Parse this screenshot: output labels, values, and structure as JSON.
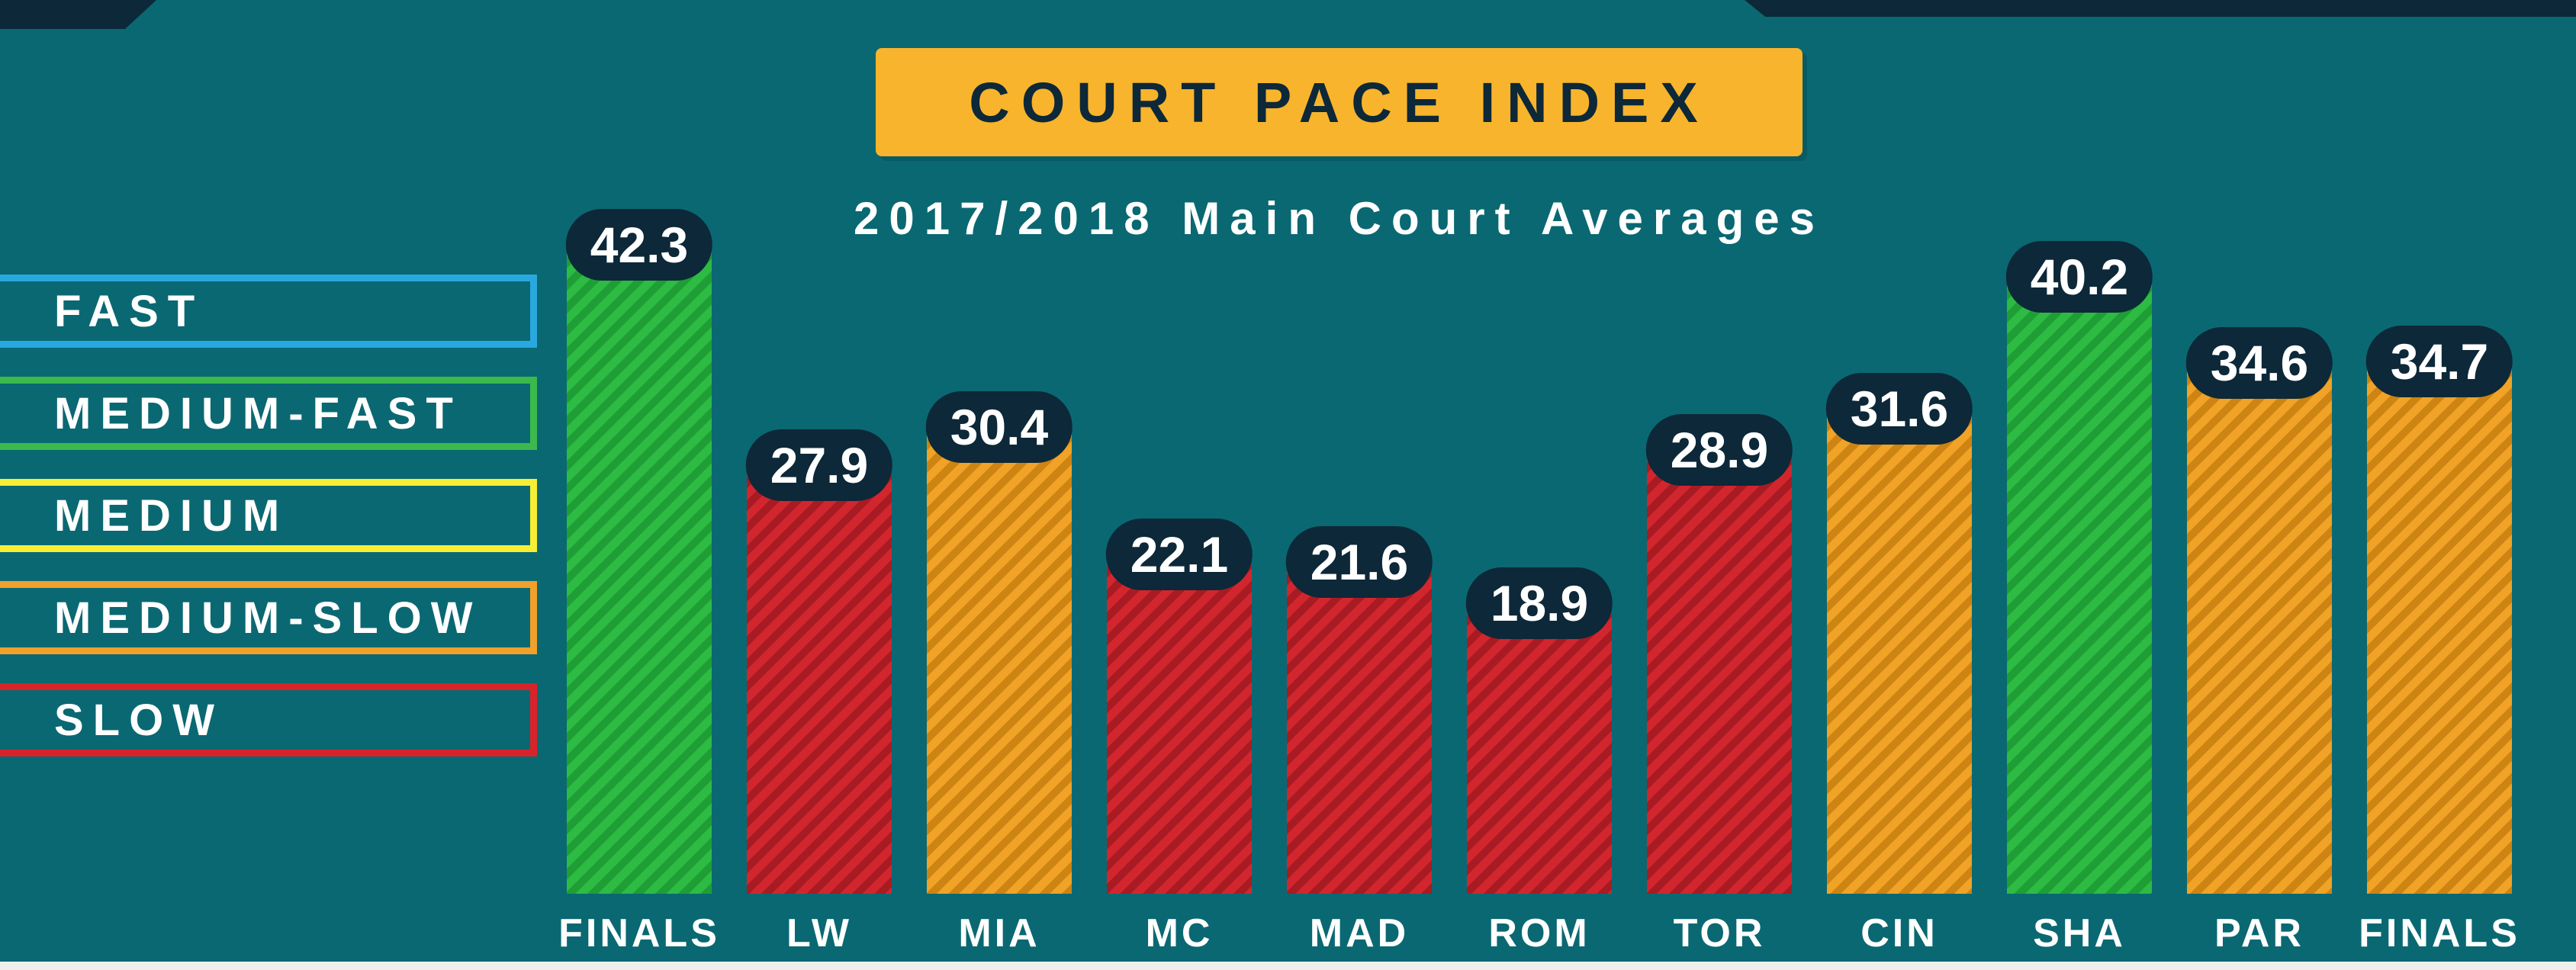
{
  "title": "COURT PACE INDEX",
  "subtitle": "2017/2018 Main Court Averages",
  "palette": {
    "background": "#0a6872",
    "navy": "#0d2838",
    "banner": "#f8b42c",
    "bottom_strip": "#efefec"
  },
  "legend": [
    {
      "label": "FAST",
      "color": "#29a8e0"
    },
    {
      "label": "MEDIUM-FAST",
      "color": "#3cb94c"
    },
    {
      "label": "MEDIUM",
      "color": "#f5ee35"
    },
    {
      "label": "MEDIUM-SLOW",
      "color": "#f0a02b"
    },
    {
      "label": "SLOW",
      "color": "#d8232b"
    }
  ],
  "chart_data": {
    "type": "bar",
    "title": "COURT PACE INDEX",
    "subtitle": "2017/2018 Main Court Averages",
    "categories": [
      "FINALS",
      "LW",
      "MIA",
      "MC",
      "MAD",
      "ROM",
      "TOR",
      "CIN",
      "SHA",
      "PAR",
      "FINALS"
    ],
    "values": [
      42.3,
      27.9,
      30.4,
      22.1,
      21.6,
      18.9,
      28.9,
      31.6,
      40.2,
      34.6,
      34.7
    ],
    "pace_class": [
      "medium-fast",
      "slow",
      "medium-slow",
      "slow",
      "slow",
      "slow",
      "slow",
      "medium-slow",
      "medium-fast",
      "medium-slow",
      "medium-slow"
    ],
    "ylim": [
      0,
      45
    ],
    "grid": false,
    "legend_position": "left",
    "colors": {
      "medium-fast": {
        "base": "#2dbb43",
        "stripe": "#1e9e35"
      },
      "medium-slow": {
        "base": "#f0a326",
        "stripe": "#cd8412"
      },
      "slow": {
        "base": "#d2262e",
        "stripe": "#a81b23"
      }
    }
  }
}
